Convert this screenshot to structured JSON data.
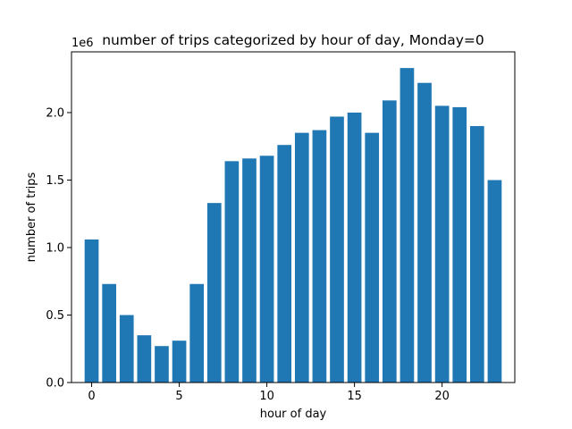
{
  "chart_data": {
    "type": "bar",
    "title": "number of trips categorized by hour of day, Monday=0",
    "xlabel": "hour of day",
    "ylabel": "number of trips",
    "y_offset_label": "1e6",
    "x": [
      0,
      1,
      2,
      3,
      4,
      5,
      6,
      7,
      8,
      9,
      10,
      11,
      12,
      13,
      14,
      15,
      16,
      17,
      18,
      19,
      20,
      21,
      22,
      23
    ],
    "values": [
      1.06,
      0.73,
      0.5,
      0.35,
      0.27,
      0.31,
      0.73,
      1.33,
      1.64,
      1.66,
      1.68,
      1.76,
      1.85,
      1.87,
      1.97,
      2.0,
      1.85,
      2.09,
      2.33,
      2.22,
      2.05,
      2.04,
      1.9,
      1.5
    ],
    "value_unit_multiplier": 1000000,
    "xlim": [
      -1.15,
      24.15
    ],
    "ylim": [
      0,
      2.45
    ],
    "x_ticks": [
      0,
      5,
      10,
      15,
      20
    ],
    "x_tick_labels": [
      "0",
      "5",
      "10",
      "15",
      "20"
    ],
    "y_ticks": [
      0,
      0.5,
      1.0,
      1.5,
      2.0
    ],
    "y_tick_labels": [
      "0.0",
      "0.5",
      "1.0",
      "1.5",
      "2.0"
    ],
    "bar_color": "#1f77b4",
    "grid": false,
    "legend": "none"
  }
}
